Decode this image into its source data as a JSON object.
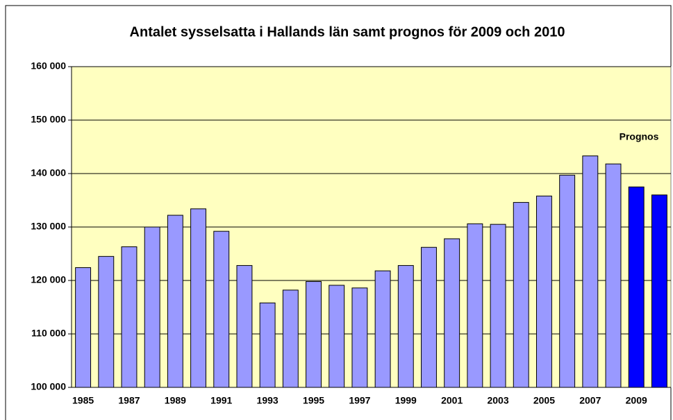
{
  "chart_data": {
    "type": "bar",
    "title": "Antalet sysselsatta i Hallands län samt prognos för 2009 och 2010",
    "annotation": "Prognos",
    "categories": [
      "1985",
      null,
      "1987",
      null,
      "1989",
      null,
      "1991",
      null,
      "1993",
      null,
      "1995",
      null,
      "1997",
      null,
      "1999",
      null,
      "2001",
      null,
      "2003",
      null,
      "2005",
      null,
      "2007",
      null,
      "2009",
      null
    ],
    "values": [
      122400,
      124500,
      126300,
      130000,
      132200,
      133400,
      129200,
      122800,
      115800,
      118200,
      119800,
      119100,
      118600,
      121800,
      122800,
      126200,
      127800,
      130600,
      130500,
      134600,
      135800,
      139700,
      143300,
      141800,
      137500,
      136000
    ],
    "colors": [
      "#9999ff",
      "#9999ff",
      "#9999ff",
      "#9999ff",
      "#9999ff",
      "#9999ff",
      "#9999ff",
      "#9999ff",
      "#9999ff",
      "#9999ff",
      "#9999ff",
      "#9999ff",
      "#9999ff",
      "#9999ff",
      "#9999ff",
      "#9999ff",
      "#9999ff",
      "#9999ff",
      "#9999ff",
      "#9999ff",
      "#9999ff",
      "#9999ff",
      "#9999ff",
      "#9999ff",
      "#0000ff",
      "#0000ff"
    ],
    "ylim": [
      100000,
      160000
    ],
    "yticks": [
      {
        "value": 100000,
        "label": "100 000"
      },
      {
        "value": 110000,
        "label": "110 000"
      },
      {
        "value": 120000,
        "label": "120 000"
      },
      {
        "value": 130000,
        "label": "130 000"
      },
      {
        "value": 140000,
        "label": "140 000"
      },
      {
        "value": 150000,
        "label": "150 000"
      },
      {
        "value": 160000,
        "label": "160 000"
      }
    ],
    "grid": true,
    "plot_background": "#ffffc0"
  }
}
